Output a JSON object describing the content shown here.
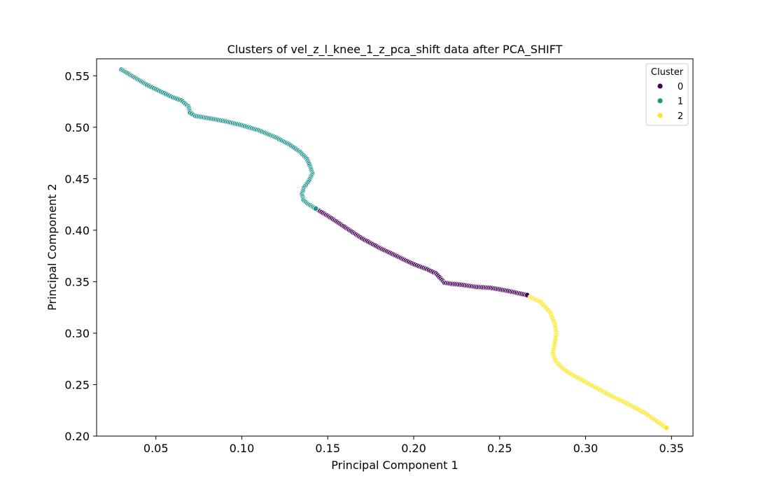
{
  "chart_data": {
    "type": "scatter",
    "title": "Clusters of vel_z_l_knee_1_z_pca_shift data after PCA_SHIFT",
    "xlabel": "Principal Component 1",
    "ylabel": "Principal Component 2",
    "xlim": [
      0.0155,
      0.3625
    ],
    "ylim": [
      0.2,
      0.5665
    ],
    "xticks": [
      0.05,
      0.1,
      0.15,
      0.2,
      0.25,
      0.3,
      0.35
    ],
    "xtick_labels": [
      "0.05",
      "0.10",
      "0.15",
      "0.20",
      "0.25",
      "0.30",
      "0.35"
    ],
    "yticks": [
      0.2,
      0.25,
      0.3,
      0.35,
      0.4,
      0.45,
      0.5,
      0.55
    ],
    "ytick_labels": [
      "0.20",
      "0.25",
      "0.30",
      "0.35",
      "0.40",
      "0.45",
      "0.50",
      "0.55"
    ],
    "grid": false,
    "legend": {
      "title": "Cluster",
      "placement": "upper right",
      "entries": [
        {
          "label": "0",
          "color": "#440154"
        },
        {
          "label": "1",
          "color": "#21918c"
        },
        {
          "label": "2",
          "color": "#fde725"
        }
      ]
    },
    "series": [
      {
        "name": "0",
        "color": "#440154",
        "x": [
          0.143,
          0.15,
          0.16,
          0.17,
          0.18,
          0.19,
          0.2,
          0.208,
          0.213,
          0.218,
          0.222,
          0.228,
          0.236,
          0.245,
          0.255,
          0.266
        ],
        "y": [
          0.421,
          0.414,
          0.403,
          0.392,
          0.383,
          0.375,
          0.367,
          0.362,
          0.358,
          0.349,
          0.348,
          0.347,
          0.345,
          0.344,
          0.341,
          0.337
        ]
      },
      {
        "name": "1",
        "color": "#21918c",
        "x": [
          0.03,
          0.035,
          0.04,
          0.045,
          0.05,
          0.055,
          0.06,
          0.065,
          0.069,
          0.07,
          0.073,
          0.08,
          0.09,
          0.1,
          0.11,
          0.12,
          0.128,
          0.134,
          0.138,
          0.14,
          0.141,
          0.139,
          0.136,
          0.135,
          0.136,
          0.139,
          0.143
        ],
        "y": [
          0.556,
          0.551,
          0.546,
          0.541,
          0.537,
          0.533,
          0.529,
          0.526,
          0.52,
          0.514,
          0.511,
          0.509,
          0.506,
          0.502,
          0.497,
          0.49,
          0.483,
          0.476,
          0.469,
          0.461,
          0.455,
          0.448,
          0.441,
          0.435,
          0.429,
          0.425,
          0.421
        ]
      },
      {
        "name": "2",
        "color": "#fde725",
        "x": [
          0.268,
          0.274,
          0.279,
          0.282,
          0.283,
          0.282,
          0.281,
          0.283,
          0.288,
          0.295,
          0.305,
          0.315,
          0.325,
          0.335,
          0.347
        ],
        "y": [
          0.335,
          0.33,
          0.321,
          0.31,
          0.3,
          0.29,
          0.28,
          0.272,
          0.264,
          0.257,
          0.248,
          0.239,
          0.231,
          0.222,
          0.208
        ]
      }
    ]
  }
}
